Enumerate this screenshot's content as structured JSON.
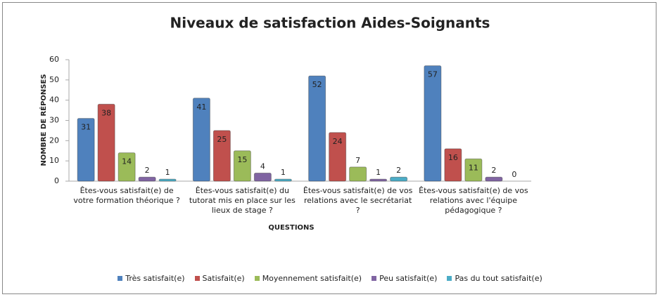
{
  "chart_data": {
    "type": "bar",
    "title": "Niveaux de satisfaction Aides-Soignants",
    "y_label": "NOMBRE DE RÉPONSES",
    "x_label": "QUESTIONS",
    "categories": [
      "Êtes-vous satisfait(e) de votre formation théorique ?",
      "Êtes-vous satisfait(e) du tutorat mis en place sur les lieux de stage ?",
      "Êtes-vous satisfait(e) de vos relations avec le secrétariat ?",
      "Êtes-vous satisfait(e) de vos relations avec l'équipe pédagogique ?"
    ],
    "series": [
      {
        "name": "Très satisfait(e)",
        "color": "#4f81bd",
        "values": [
          31,
          41,
          52,
          57
        ]
      },
      {
        "name": "Satisfait(e)",
        "color": "#c0504d",
        "values": [
          38,
          25,
          24,
          16
        ]
      },
      {
        "name": "Moyennement satisfait(e)",
        "color": "#9bbb59",
        "values": [
          14,
          15,
          7,
          11
        ]
      },
      {
        "name": "Peu satisfait(e)",
        "color": "#8064a2",
        "values": [
          2,
          4,
          1,
          2
        ]
      },
      {
        "name": "Pas du tout satisfait(e)",
        "color": "#4bacc6",
        "values": [
          1,
          1,
          2,
          0
        ]
      }
    ],
    "ylim": [
      0,
      60
    ],
    "yticks": [
      0,
      10,
      20,
      30,
      40,
      50,
      60
    ],
    "legend": "bottom"
  }
}
